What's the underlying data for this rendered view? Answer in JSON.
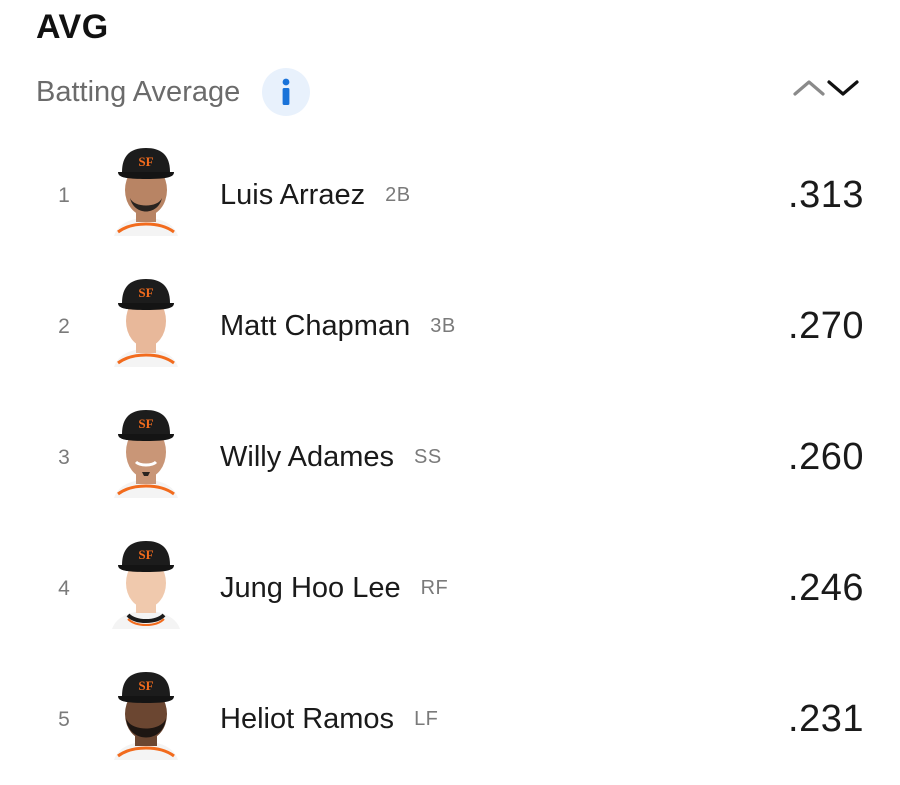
{
  "header": {
    "title": "AVG",
    "subtitle": "Batting Average",
    "info_icon": "info-icon",
    "sort_icons": [
      "chevron-up-icon",
      "chevron-down-icon"
    ]
  },
  "colors": {
    "info_blue": "#1a73d9",
    "info_bg": "#e8f1fc",
    "cap_black": "#1c1c1c",
    "team_orange": "#f26b1d"
  },
  "leaders": [
    {
      "rank": "1",
      "name": "Luis Arraez",
      "position": "2B",
      "value": ".313",
      "headshot": "player-headshot"
    },
    {
      "rank": "2",
      "name": "Matt Chapman",
      "position": "3B",
      "value": ".270",
      "headshot": "player-headshot"
    },
    {
      "rank": "3",
      "name": "Willy Adames",
      "position": "SS",
      "value": ".260",
      "headshot": "player-headshot"
    },
    {
      "rank": "4",
      "name": "Jung Hoo Lee",
      "position": "RF",
      "value": ".246",
      "headshot": "player-headshot"
    },
    {
      "rank": "5",
      "name": "Heliot Ramos",
      "position": "LF",
      "value": ".231",
      "headshot": "player-headshot"
    }
  ]
}
